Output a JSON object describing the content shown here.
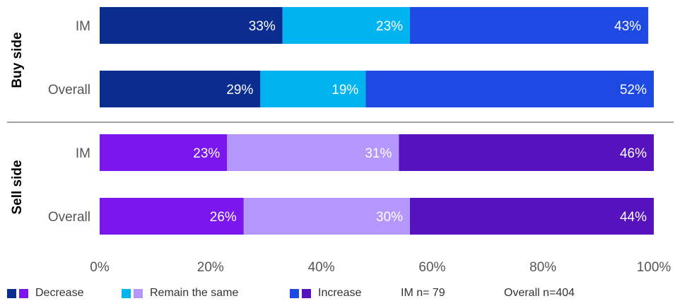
{
  "chart_data": {
    "type": "bar",
    "orientation": "horizontal",
    "stacked": true,
    "groups": [
      {
        "name": "Buy side",
        "rows": [
          {
            "label": "IM",
            "values": [
              33,
              23,
              43
            ],
            "labels": [
              "33%",
              "23%",
              "43%"
            ]
          },
          {
            "label": "Overall",
            "values": [
              29,
              19,
              52
            ],
            "labels": [
              "29%",
              "19%",
              "52%"
            ]
          }
        ],
        "colors": [
          "#0a2d8f",
          "#00b4f0",
          "#1e49e2"
        ]
      },
      {
        "name": "Sell side",
        "rows": [
          {
            "label": "IM",
            "values": [
              23,
              31,
              46
            ],
            "labels": [
              "23%",
              "31%",
              "46%"
            ]
          },
          {
            "label": "Overall",
            "values": [
              26,
              30,
              44
            ],
            "labels": [
              "26%",
              "30%",
              "44%"
            ]
          }
        ],
        "colors": [
          "#7b16ee",
          "#b497fb",
          "#5512bd"
        ]
      }
    ],
    "series": [
      {
        "name": "Decrease"
      },
      {
        "name": "Remain the same"
      },
      {
        "name": "Increase"
      }
    ],
    "x_ticks": [
      "0%",
      "20%",
      "40%",
      "60%",
      "80%",
      "100%"
    ],
    "xlim": [
      0,
      100
    ],
    "grid": false,
    "legend_position": "bottom"
  },
  "legend": {
    "items": [
      {
        "label": "Decrease",
        "colors": [
          "#0a2d8f",
          "#7b16ee"
        ]
      },
      {
        "label": "Remain the same",
        "colors": [
          "#00b4f0",
          "#b497fb"
        ]
      },
      {
        "label": "Increase",
        "colors": [
          "#1e49e2",
          "#5512bd"
        ]
      }
    ],
    "notes": [
      "IM n= 79",
      "Overall n=404"
    ]
  }
}
